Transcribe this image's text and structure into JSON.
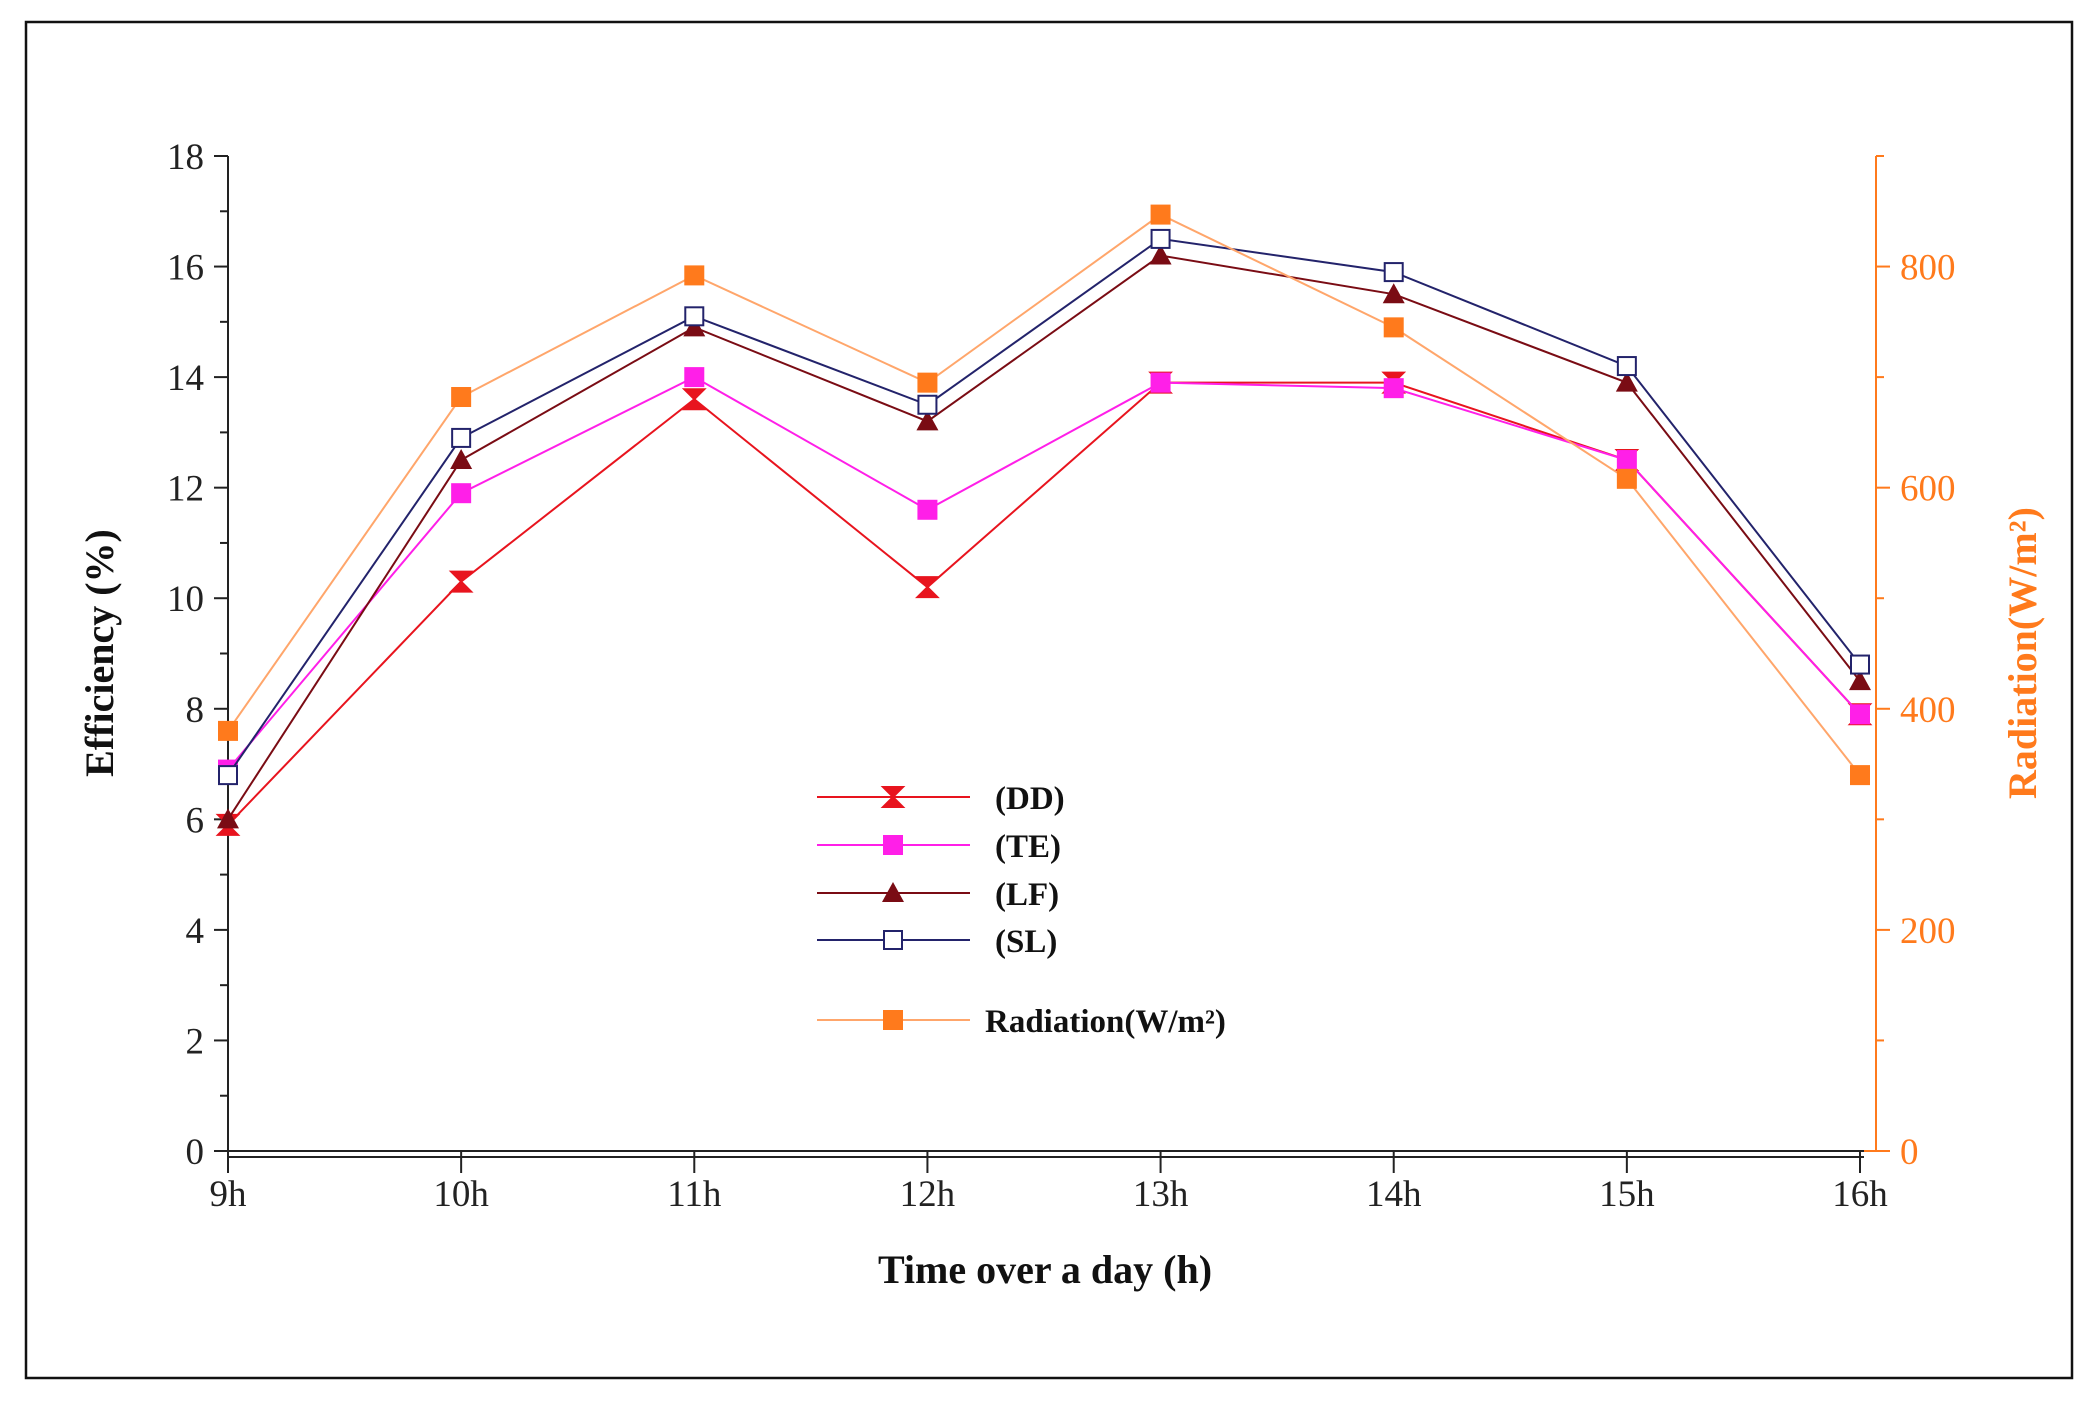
{
  "chart_data": {
    "type": "line",
    "categories": [
      "9h",
      "10h",
      "11h",
      "12h",
      "13h",
      "14h",
      "15h",
      "16h"
    ],
    "xlabel": "Time over a day (h)",
    "ylabel": "Efficiency (%)",
    "y2label": "Radiation(W/m²)",
    "ylim": [
      0,
      18
    ],
    "yticks": [
      0,
      2,
      4,
      6,
      8,
      10,
      12,
      14,
      16,
      18
    ],
    "y2lim": [
      0,
      900
    ],
    "y2ticks": [
      0,
      200,
      400,
      600,
      800
    ],
    "legend_position": "center-left",
    "series": [
      {
        "name": "(DD)",
        "axis": "left",
        "marker": "hourglass",
        "color": "#e8141e",
        "values": [
          5.9,
          10.3,
          13.6,
          10.2,
          13.9,
          13.9,
          12.5,
          7.9
        ]
      },
      {
        "name": "(TE)",
        "axis": "left",
        "marker": "square-filled",
        "color": "#ff1fe8",
        "values": [
          6.9,
          11.9,
          14.0,
          11.6,
          13.9,
          13.8,
          12.5,
          7.9
        ]
      },
      {
        "name": "(LF)",
        "axis": "left",
        "marker": "triangle",
        "color": "#7a0c14",
        "values": [
          6.0,
          12.5,
          14.9,
          13.2,
          16.2,
          15.5,
          13.9,
          8.5
        ]
      },
      {
        "name": "(SL)",
        "axis": "left",
        "marker": "square-open",
        "color": "#23236b",
        "values": [
          6.8,
          12.9,
          15.1,
          13.5,
          16.5,
          15.9,
          14.2,
          8.8
        ]
      },
      {
        "name": "Radiation(W/m²)",
        "axis": "right",
        "marker": "square-filled",
        "color": "#ff7a1c",
        "line_color": "#ffa66b",
        "values": [
          380,
          682,
          792,
          695,
          847,
          745,
          608,
          340
        ]
      }
    ]
  }
}
